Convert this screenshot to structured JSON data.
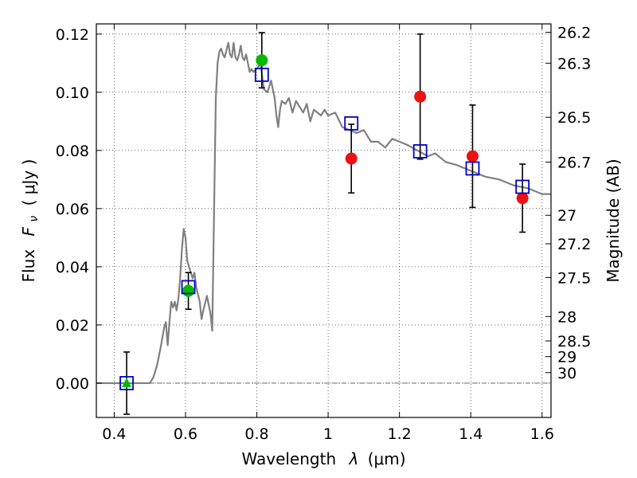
{
  "chart_data": {
    "type": "scatter",
    "xlabel_parts": {
      "text": "Wavelength",
      "symbol": "λ",
      "unit": "(μm)"
    },
    "ylabel_parts": {
      "text": "Flux",
      "symbol": "F",
      "subscript": "ν",
      "unit": "( μJy )"
    },
    "y2label": "Magnitude (AB)",
    "xlim": [
      0.35,
      1.625
    ],
    "ylim": [
      -0.0118,
      0.1235
    ],
    "grid": true,
    "x_ticks": [
      0.4,
      0.6,
      0.8,
      1.0,
      1.2,
      1.4,
      1.6
    ],
    "x_tick_labels": [
      "0.4",
      "0.6",
      "0.8",
      "1",
      "1.2",
      "1.4",
      "1.6"
    ],
    "y_ticks": [
      0.0,
      0.02,
      0.04,
      0.06,
      0.08,
      0.1,
      0.12
    ],
    "y_tick_labels": [
      "0.00",
      "0.02",
      "0.04",
      "0.06",
      "0.08",
      "0.10",
      "0.12"
    ],
    "y2_ticks": [
      {
        "label": "26.2",
        "flux": 0.1206
      },
      {
        "label": "26.3",
        "flux": 0.11
      },
      {
        "label": "26.5",
        "flux": 0.0914
      },
      {
        "label": "26.7",
        "flux": 0.076
      },
      {
        "label": "27",
        "flux": 0.0577
      },
      {
        "label": "27.2",
        "flux": 0.0479
      },
      {
        "label": "27.5",
        "flux": 0.0363
      },
      {
        "label": "28",
        "flux": 0.0229
      },
      {
        "label": "28.5",
        "flux": 0.0145
      },
      {
        "label": "29",
        "flux": 0.0091
      },
      {
        "label": "30",
        "flux": 0.0036
      }
    ],
    "colors": {
      "model": "#808080",
      "green_points": "#00bb00",
      "red_points": "#ee1111",
      "model_boxes": "#0000cc",
      "errorbars": "#000000",
      "zero_line": "#555555"
    },
    "model_spectrum": {
      "x": [
        0.35,
        0.5,
        0.51,
        0.52,
        0.53,
        0.54,
        0.545,
        0.55,
        0.555,
        0.56,
        0.565,
        0.57,
        0.575,
        0.58,
        0.585,
        0.59,
        0.595,
        0.6,
        0.605,
        0.61,
        0.615,
        0.62,
        0.625,
        0.63,
        0.64,
        0.645,
        0.65,
        0.66,
        0.665,
        0.67,
        0.675,
        0.68,
        0.685,
        0.69,
        0.695,
        0.7,
        0.705,
        0.71,
        0.72,
        0.725,
        0.73,
        0.735,
        0.74,
        0.745,
        0.75,
        0.755,
        0.76,
        0.765,
        0.77,
        0.775,
        0.78,
        0.785,
        0.79,
        0.8,
        0.81,
        0.82,
        0.83,
        0.84,
        0.85,
        0.855,
        0.86,
        0.865,
        0.87,
        0.88,
        0.89,
        0.9,
        0.91,
        0.92,
        0.93,
        0.94,
        0.95,
        0.96,
        0.97,
        0.98,
        0.99,
        1.0,
        1.02,
        1.04,
        1.06,
        1.08,
        1.1,
        1.12,
        1.14,
        1.16,
        1.18,
        1.2,
        1.22,
        1.25,
        1.28,
        1.3,
        1.33,
        1.36,
        1.4,
        1.44,
        1.48,
        1.52,
        1.56,
        1.6,
        1.625
      ],
      "y": [
        0.0,
        0.0,
        0.002,
        0.006,
        0.012,
        0.019,
        0.021,
        0.013,
        0.021,
        0.028,
        0.026,
        0.028,
        0.025,
        0.029,
        0.036,
        0.046,
        0.053,
        0.05,
        0.042,
        0.04,
        0.038,
        0.036,
        0.038,
        0.033,
        0.028,
        0.022,
        0.025,
        0.03,
        0.027,
        0.024,
        0.018,
        0.058,
        0.098,
        0.11,
        0.114,
        0.115,
        0.113,
        0.112,
        0.117,
        0.113,
        0.112,
        0.117,
        0.112,
        0.111,
        0.113,
        0.116,
        0.112,
        0.111,
        0.113,
        0.11,
        0.107,
        0.108,
        0.107,
        0.108,
        0.11,
        0.101,
        0.1,
        0.104,
        0.098,
        0.092,
        0.088,
        0.094,
        0.097,
        0.096,
        0.098,
        0.093,
        0.097,
        0.095,
        0.093,
        0.096,
        0.09,
        0.094,
        0.093,
        0.092,
        0.094,
        0.092,
        0.093,
        0.088,
        0.087,
        0.086,
        0.087,
        0.083,
        0.083,
        0.081,
        0.084,
        0.083,
        0.082,
        0.08,
        0.078,
        0.079,
        0.076,
        0.075,
        0.073,
        0.071,
        0.07,
        0.068,
        0.067,
        0.065,
        0.065
      ]
    },
    "green_points": [
      {
        "x": 0.608,
        "y": 0.0317,
        "err": 0.0063
      },
      {
        "x": 0.814,
        "y": 0.111,
        "err": 0.0095
      }
    ],
    "green_triangle": {
      "x": 0.435,
      "y": 0.0,
      "err": 0.0107
    },
    "red_points": [
      {
        "x": 1.065,
        "y": 0.0772,
        "err": 0.0118
      },
      {
        "x": 1.258,
        "y": 0.0985,
        "err": 0.0215
      },
      {
        "x": 1.405,
        "y": 0.078,
        "err": 0.0176
      },
      {
        "x": 1.545,
        "y": 0.0636,
        "err": 0.0117
      }
    ],
    "model_boxes": [
      {
        "x": 0.435,
        "y": 0.0
      },
      {
        "x": 0.608,
        "y": 0.033
      },
      {
        "x": 0.814,
        "y": 0.106
      },
      {
        "x": 1.065,
        "y": 0.0893
      },
      {
        "x": 1.258,
        "y": 0.0797
      },
      {
        "x": 1.405,
        "y": 0.0738
      },
      {
        "x": 1.545,
        "y": 0.0675
      }
    ]
  }
}
